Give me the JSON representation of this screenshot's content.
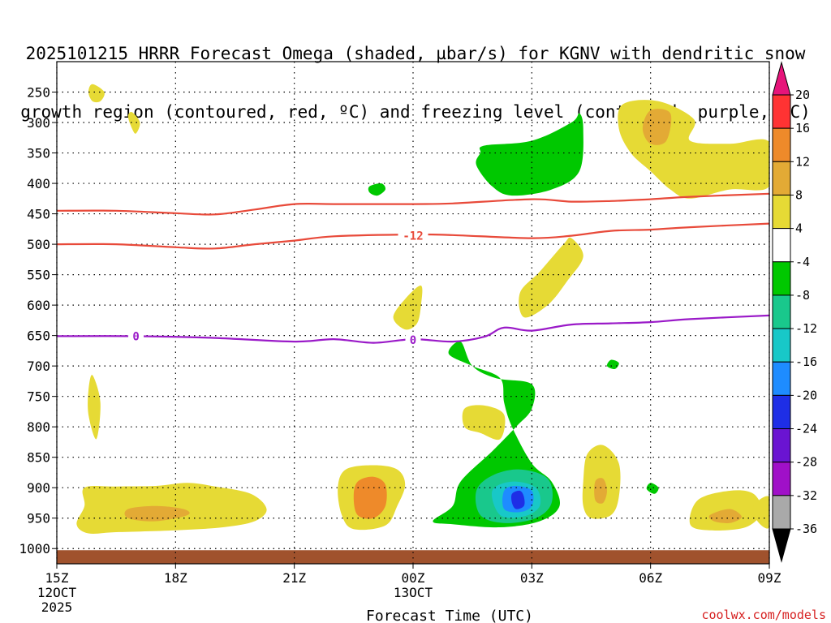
{
  "chart_data": {
    "type": "heatmap",
    "title_line1": "2025101215 HRRR Forecast Omega (shaded, µbar/s) for KGNV with dendritic snow",
    "title_line2": "growth region (contoured, red, ºC) and freezing level (contoured, purple, ºC)",
    "xlabel": "Forecast Time (UTC)",
    "ylabel": "",
    "credit": "coolwx.com/models",
    "x_ticks": [
      {
        "h": 0,
        "label": "15Z",
        "sub1": "12OCT",
        "sub2": "2025"
      },
      {
        "h": 3,
        "label": "18Z"
      },
      {
        "h": 6,
        "label": "21Z"
      },
      {
        "h": 9,
        "label": "00Z",
        "sub1": "13OCT"
      },
      {
        "h": 12,
        "label": "03Z"
      },
      {
        "h": 15,
        "label": "06Z"
      },
      {
        "h": 18,
        "label": "09Z"
      }
    ],
    "xlim": [
      0,
      18
    ],
    "y_levels": [
      250,
      300,
      350,
      400,
      450,
      500,
      550,
      600,
      650,
      700,
      750,
      800,
      850,
      900,
      950,
      1000
    ],
    "ylim": [
      200,
      1025
    ],
    "ground_level_hpa": 1000,
    "ground_color": "#a0522d",
    "colorbar": {
      "levels": [
        -36,
        -32,
        -28,
        -24,
        -20,
        -16,
        -12,
        -8,
        -4,
        4,
        8,
        12,
        16,
        20
      ],
      "labels": [
        "20",
        "16",
        "12",
        "8",
        "4",
        "-4",
        "-8",
        "-12",
        "-16",
        "-20",
        "-24",
        "-28",
        "-32",
        "-36"
      ],
      "colors_top_to_bottom": [
        "#ff3333",
        "#ee8a2a",
        "#e3aa35",
        "#e6da35",
        "#ffffff",
        "#00c800",
        "#19c88c",
        "#18c8c8",
        "#1e8cff",
        "#1e2ee6",
        "#6a14d2",
        "#a010c8",
        "#a9a9a9"
      ],
      "over_color": "#e6147a",
      "under_color": "#000000"
    },
    "contours": [
      {
        "name": "dendritic-upper",
        "color": "#e84a3a",
        "label": "",
        "points": [
          [
            0,
            445
          ],
          [
            1.5,
            445
          ],
          [
            3,
            449
          ],
          [
            4,
            451
          ],
          [
            5,
            443
          ],
          [
            6,
            434
          ],
          [
            7,
            434
          ],
          [
            9,
            434
          ],
          [
            10,
            433
          ],
          [
            12,
            426
          ],
          [
            13,
            430
          ],
          [
            14,
            429
          ],
          [
            15,
            426
          ],
          [
            16,
            422
          ],
          [
            18,
            417
          ]
        ]
      },
      {
        "name": "dendritic-lower",
        "color": "#e84a3a",
        "label": "-12",
        "label_h": 0.0,
        "points": [
          [
            0,
            500
          ],
          [
            1.5,
            500
          ],
          [
            3,
            505
          ],
          [
            4,
            507
          ],
          [
            5,
            500
          ],
          [
            6,
            494
          ],
          [
            7,
            487
          ],
          [
            9,
            484
          ],
          [
            10,
            485
          ],
          [
            12,
            490
          ],
          [
            13,
            486
          ],
          [
            14,
            478
          ],
          [
            15,
            476
          ],
          [
            16,
            472
          ],
          [
            18,
            466
          ]
        ]
      },
      {
        "name": "freezing-level",
        "color": "#9a1ac8",
        "label": "0",
        "label_h": 0.0,
        "points": [
          [
            0,
            651
          ],
          [
            2,
            651
          ],
          [
            4,
            654
          ],
          [
            6,
            660
          ],
          [
            7,
            656
          ],
          [
            8,
            662
          ],
          [
            9,
            656
          ],
          [
            10,
            660
          ],
          [
            10.8,
            652
          ],
          [
            11.3,
            637
          ],
          [
            12,
            642
          ],
          [
            13,
            632
          ],
          [
            14,
            630
          ],
          [
            15,
            628
          ],
          [
            16,
            623
          ],
          [
            18,
            617
          ]
        ]
      }
    ],
    "contour_labels": [
      {
        "text": "-12",
        "h": 9.0,
        "p": 486,
        "color": "#e84a3a"
      },
      {
        "text": "0",
        "h": 2.0,
        "p": 651,
        "color": "#9a1ac8"
      },
      {
        "text": "0",
        "h": 9.0,
        "p": 657,
        "color": "#9a1ac8"
      }
    ],
    "omega_regions": [
      {
        "color": "#e6da35",
        "value": 4,
        "points": [
          [
            0.9,
            237
          ],
          [
            1.2,
            250
          ],
          [
            1.1,
            265
          ],
          [
            0.9,
            265
          ],
          [
            0.8,
            250
          ]
        ]
      },
      {
        "color": "#e6da35",
        "value": 4,
        "points": [
          [
            1.9,
            283
          ],
          [
            2.1,
            300
          ],
          [
            2.0,
            318
          ],
          [
            1.9,
            310
          ],
          [
            1.8,
            290
          ]
        ]
      },
      {
        "color": "#e6da35",
        "value": 4,
        "points": [
          [
            0.9,
            715
          ],
          [
            1.1,
            760
          ],
          [
            1.0,
            820
          ],
          [
            0.8,
            780
          ],
          [
            0.8,
            740
          ]
        ]
      },
      {
        "color": "#e6da35",
        "value": 4,
        "points": [
          [
            0.7,
            900
          ],
          [
            1.5,
            898
          ],
          [
            2.5,
            897
          ],
          [
            3.3,
            892
          ],
          [
            4.0,
            898
          ],
          [
            4.9,
            910
          ],
          [
            5.3,
            935
          ],
          [
            5.0,
            955
          ],
          [
            4.2,
            965
          ],
          [
            3.0,
            970
          ],
          [
            1.5,
            973
          ],
          [
            0.8,
            975
          ],
          [
            0.5,
            960
          ],
          [
            0.7,
            930
          ]
        ]
      },
      {
        "color": "#e3aa35",
        "value": 8,
        "points": [
          [
            1.8,
            935
          ],
          [
            2.5,
            930
          ],
          [
            3.2,
            935
          ],
          [
            3.3,
            945
          ],
          [
            2.5,
            955
          ],
          [
            1.8,
            950
          ]
        ]
      },
      {
        "color": "#e6da35",
        "value": 4,
        "points": [
          [
            7.3,
            870
          ],
          [
            8.0,
            863
          ],
          [
            8.6,
            870
          ],
          [
            8.8,
            895
          ],
          [
            8.6,
            930
          ],
          [
            8.3,
            962
          ],
          [
            7.5,
            968
          ],
          [
            7.2,
            945
          ],
          [
            7.1,
            900
          ]
        ]
      },
      {
        "color": "#ee8a2a",
        "value": 12,
        "points": [
          [
            7.6,
            890
          ],
          [
            8.0,
            882
          ],
          [
            8.3,
            895
          ],
          [
            8.3,
            930
          ],
          [
            8.0,
            950
          ],
          [
            7.6,
            945
          ],
          [
            7.5,
            915
          ]
        ]
      },
      {
        "color": "#e6da35",
        "value": 4,
        "points": [
          [
            8.5,
            620
          ],
          [
            8.8,
            590
          ],
          [
            9.2,
            568
          ],
          [
            9.2,
            600
          ],
          [
            9.1,
            630
          ],
          [
            8.8,
            640
          ]
        ]
      },
      {
        "color": "#e6da35",
        "value": 4,
        "points": [
          [
            10.3,
            770
          ],
          [
            10.8,
            765
          ],
          [
            11.3,
            780
          ],
          [
            11.2,
            820
          ],
          [
            10.7,
            810
          ],
          [
            10.3,
            800
          ]
        ]
      },
      {
        "color": "#00c800",
        "value": -4,
        "points": [
          [
            7.9,
            405
          ],
          [
            8.2,
            400
          ],
          [
            8.3,
            410
          ],
          [
            8.1,
            420
          ],
          [
            7.9,
            415
          ]
        ]
      },
      {
        "color": "#00c800",
        "value": -4,
        "points": [
          [
            10.8,
            338
          ],
          [
            12,
            330
          ],
          [
            13,
            300
          ],
          [
            13.2,
            285
          ],
          [
            13.3,
            310
          ],
          [
            13.2,
            380
          ],
          [
            12.5,
            410
          ],
          [
            11.5,
            420
          ],
          [
            11.0,
            405
          ],
          [
            10.6,
            370
          ],
          [
            10.7,
            350
          ]
        ]
      },
      {
        "color": "#e6da35",
        "value": 4,
        "points": [
          [
            14.3,
            270
          ],
          [
            15.2,
            265
          ],
          [
            16.1,
            295
          ],
          [
            16.0,
            330
          ],
          [
            17,
            335
          ],
          [
            18,
            332
          ],
          [
            18,
            405
          ],
          [
            17,
            410
          ],
          [
            16,
            425
          ],
          [
            15.5,
            410
          ],
          [
            15.0,
            380
          ],
          [
            14.5,
            350
          ],
          [
            14.2,
            310
          ]
        ]
      },
      {
        "color": "#e3aa35",
        "value": 8,
        "points": [
          [
            15.0,
            280
          ],
          [
            15.5,
            285
          ],
          [
            15.4,
            330
          ],
          [
            15.0,
            335
          ],
          [
            14.8,
            310
          ]
        ]
      },
      {
        "color": "#e6da35",
        "value": 4,
        "points": [
          [
            12.8,
            500
          ],
          [
            13.0,
            490
          ],
          [
            13.3,
            520
          ],
          [
            12.9,
            560
          ],
          [
            12.4,
            600
          ],
          [
            11.8,
            620
          ],
          [
            11.7,
            580
          ],
          [
            12.2,
            545
          ]
        ]
      },
      {
        "color": "#00c800",
        "value": -4,
        "points": [
          [
            9.9,
            680
          ],
          [
            10.2,
            660
          ],
          [
            10.5,
            700
          ],
          [
            11.1,
            720
          ],
          [
            12.0,
            730
          ],
          [
            12.0,
            770
          ],
          [
            11.6,
            800
          ],
          [
            11.0,
            840
          ],
          [
            10.2,
            890
          ],
          [
            10.0,
            930
          ],
          [
            9.5,
            955
          ],
          [
            10.0,
            960
          ],
          [
            11.2,
            965
          ],
          [
            12.2,
            955
          ],
          [
            12.7,
            930
          ],
          [
            12.5,
            890
          ],
          [
            12.0,
            860
          ],
          [
            11.5,
            800
          ],
          [
            11.3,
            760
          ],
          [
            11.2,
            720
          ],
          [
            10.5,
            700
          ]
        ]
      },
      {
        "color": "#19c88c",
        "value": -8,
        "points": [
          [
            10.6,
            905
          ],
          [
            11.0,
            880
          ],
          [
            11.7,
            870
          ],
          [
            12.4,
            885
          ],
          [
            12.5,
            925
          ],
          [
            12.1,
            950
          ],
          [
            11.3,
            958
          ],
          [
            10.7,
            945
          ]
        ]
      },
      {
        "color": "#18c8c8",
        "value": -12,
        "points": [
          [
            11.0,
            905
          ],
          [
            11.5,
            890
          ],
          [
            12.1,
            900
          ],
          [
            12.2,
            930
          ],
          [
            11.8,
            947
          ],
          [
            11.2,
            945
          ]
        ]
      },
      {
        "color": "#1e8cff",
        "value": -16,
        "points": [
          [
            11.3,
            905
          ],
          [
            11.6,
            897
          ],
          [
            12.0,
            905
          ],
          [
            12.0,
            930
          ],
          [
            11.7,
            940
          ],
          [
            11.3,
            935
          ]
        ]
      },
      {
        "color": "#1e2ee6",
        "value": -20,
        "points": [
          [
            11.5,
            910
          ],
          [
            11.7,
            905
          ],
          [
            11.8,
            915
          ],
          [
            11.8,
            930
          ],
          [
            11.6,
            935
          ],
          [
            11.5,
            925
          ]
        ]
      },
      {
        "color": "#e6da35",
        "value": 4,
        "points": [
          [
            13.4,
            845
          ],
          [
            13.8,
            830
          ],
          [
            14.2,
            860
          ],
          [
            14.2,
            915
          ],
          [
            14.0,
            945
          ],
          [
            13.5,
            950
          ],
          [
            13.3,
            930
          ],
          [
            13.3,
            890
          ]
        ]
      },
      {
        "color": "#e3aa35",
        "value": 8,
        "points": [
          [
            13.6,
            890
          ],
          [
            13.8,
            885
          ],
          [
            13.9,
            905
          ],
          [
            13.8,
            925
          ],
          [
            13.6,
            920
          ]
        ]
      },
      {
        "color": "#00c800",
        "value": -4,
        "points": [
          [
            15.0,
            892
          ],
          [
            15.2,
            900
          ],
          [
            15.1,
            910
          ],
          [
            14.9,
            902
          ]
        ]
      },
      {
        "color": "#00c800",
        "value": -4,
        "points": [
          [
            14.0,
            690
          ],
          [
            14.2,
            695
          ],
          [
            14.1,
            705
          ],
          [
            13.9,
            700
          ]
        ]
      },
      {
        "color": "#e6da35",
        "value": 4,
        "points": [
          [
            16.2,
            920
          ],
          [
            17,
            905
          ],
          [
            17.6,
            910
          ],
          [
            17.8,
            940
          ],
          [
            17.4,
            965
          ],
          [
            16.5,
            970
          ],
          [
            16.0,
            960
          ]
        ]
      },
      {
        "color": "#e3aa35",
        "value": 8,
        "points": [
          [
            16.5,
            945
          ],
          [
            17,
            935
          ],
          [
            17.3,
            948
          ],
          [
            17.0,
            958
          ],
          [
            16.6,
            955
          ]
        ]
      },
      {
        "color": "#e6da35",
        "value": 4,
        "points": [
          [
            17.6,
            930
          ],
          [
            18,
            915
          ],
          [
            18,
            965
          ],
          [
            17.7,
            955
          ]
        ]
      }
    ]
  }
}
